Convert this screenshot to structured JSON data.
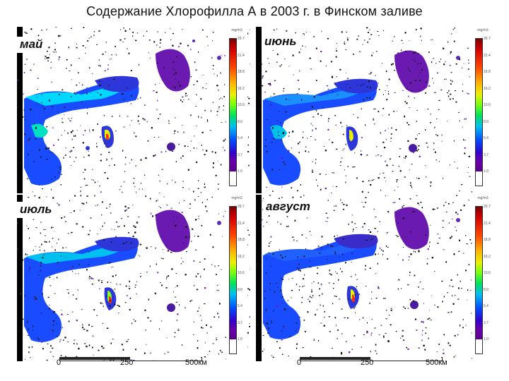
{
  "title": "Содержание Хлорофилла А в 2003 г. в Финском заливе",
  "panels": [
    {
      "label": "май"
    },
    {
      "label": "июнь"
    },
    {
      "label": "июль"
    },
    {
      "label": "август"
    }
  ],
  "colorbar": {
    "unit": "mg/m3",
    "ticks": [
      "26.7",
      "21.4",
      "18.8",
      "16.2",
      "10.6",
      "8.0",
      "5.4",
      "3.7",
      "1.0"
    ]
  },
  "scale_bars": [
    {
      "ticks": [
        "0",
        "250",
        "500км"
      ]
    },
    {
      "ticks": [
        "0",
        "250",
        "500км"
      ]
    }
  ],
  "colors": {
    "water_high": "#00e0ff",
    "water_mid": "#1a4cff",
    "water_low": "#3a2cc8",
    "lake": "#6a1ab0",
    "hotspot": "#ff3000"
  }
}
